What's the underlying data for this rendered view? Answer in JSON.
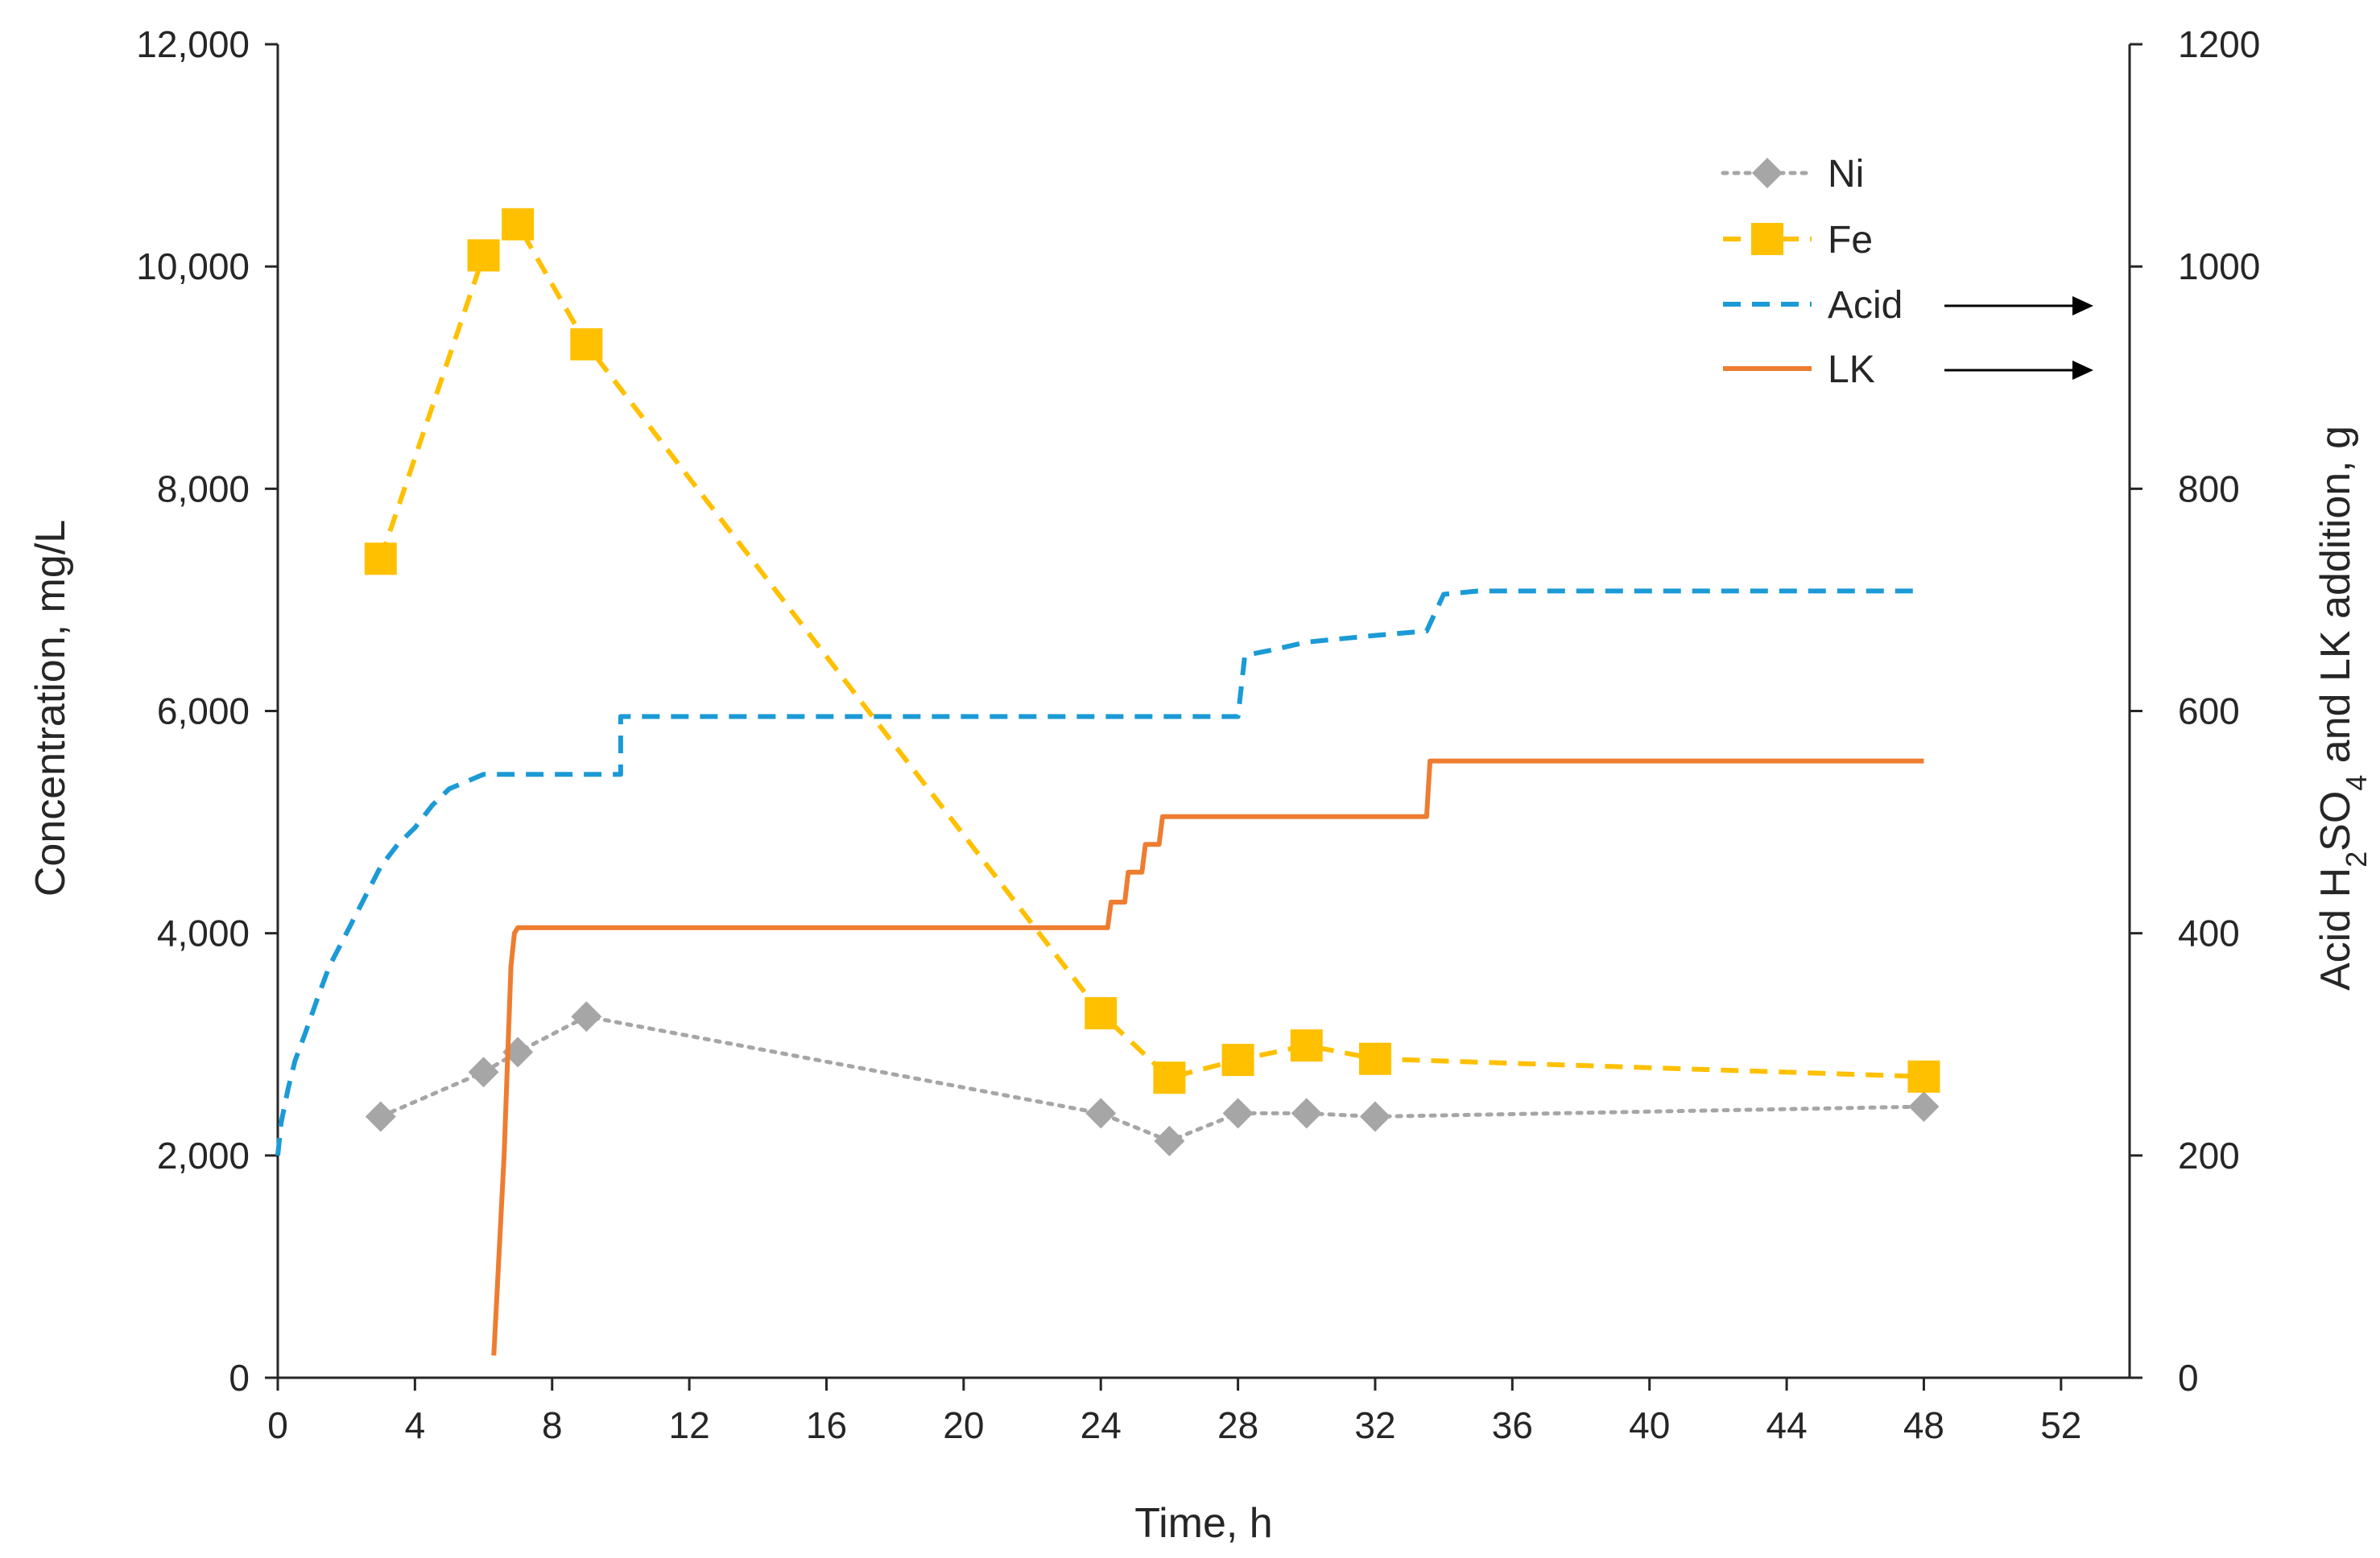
{
  "chart_data": {
    "type": "line",
    "title": "",
    "xlabel": "Time, h",
    "ylabel": "Concentration, mg/L",
    "y2label_parts": [
      "Acid H",
      "2",
      "SO",
      "4",
      " and LK addition, g"
    ],
    "xlim": [
      0,
      54
    ],
    "ylim": [
      0,
      12000
    ],
    "y2lim": [
      0,
      1200
    ],
    "x_ticks": [
      0,
      4,
      8,
      12,
      16,
      20,
      24,
      28,
      32,
      36,
      40,
      44,
      48,
      52
    ],
    "x_tick_labels": [
      "0",
      "4",
      "8",
      "12",
      "16",
      "20",
      "24",
      "28",
      "32",
      "36",
      "40",
      "44",
      "48",
      "52"
    ],
    "y_ticks": [
      0,
      2000,
      4000,
      6000,
      8000,
      10000,
      12000
    ],
    "y_tick_labels": [
      "0",
      "2,000",
      "4,000",
      "6,000",
      "8,000",
      "10,000",
      "12,000"
    ],
    "y2_ticks": [
      0,
      200,
      400,
      600,
      800,
      1000,
      1200
    ],
    "y2_tick_labels": [
      "0",
      "200",
      "400",
      "600",
      "800",
      "1000",
      "1200"
    ],
    "legend_position": "top-right",
    "series": [
      {
        "name": "Ni",
        "axis": "left",
        "style": "dotted",
        "marker": "diamond",
        "color": "#a6a6a6",
        "x": [
          3,
          6,
          7,
          9,
          24,
          26,
          28,
          30,
          32,
          48
        ],
        "y": [
          2350,
          2750,
          2930,
          3250,
          2380,
          2130,
          2380,
          2380,
          2350,
          2440
        ]
      },
      {
        "name": "Fe",
        "axis": "left",
        "style": "dashed",
        "marker": "square",
        "color": "#ffc000",
        "x": [
          3,
          6,
          7,
          9,
          24,
          26,
          28,
          30,
          32,
          48
        ],
        "y": [
          7370,
          10100,
          10380,
          9300,
          3280,
          2700,
          2860,
          2990,
          2870,
          2710
        ]
      },
      {
        "name": "Acid",
        "axis": "right",
        "style": "dashed",
        "marker": "none",
        "color": "#1b9ad6",
        "legend_arrow": true,
        "x": [
          0,
          0.1,
          0.3,
          0.5,
          0.8,
          1.2,
          1.5,
          2.0,
          2.5,
          3.0,
          3.5,
          4.0,
          4.5,
          5.0,
          6.0,
          7.0,
          10.0,
          10.0,
          25.0,
          28.0,
          28.2,
          29.0,
          30.0,
          32.0,
          33.5,
          34.0,
          35.0,
          48.0
        ],
        "y": [
          200,
          230,
          260,
          285,
          310,
          345,
          370,
          400,
          430,
          460,
          480,
          495,
          515,
          530,
          543,
          543,
          543,
          595,
          595,
          595,
          650,
          655,
          662,
          668,
          672,
          705,
          708,
          708
        ]
      },
      {
        "name": "LK",
        "axis": "right",
        "style": "solid",
        "marker": "none",
        "color": "#ed7d31",
        "legend_arrow": true,
        "x": [
          6.3,
          6.4,
          6.6,
          6.8,
          6.9,
          7.0,
          24.2,
          24.3,
          24.7,
          24.8,
          25.2,
          25.3,
          25.7,
          25.8,
          33.5,
          33.6,
          48.0
        ],
        "y": [
          20,
          80,
          200,
          370,
          400,
          405,
          405,
          428,
          428,
          455,
          455,
          480,
          480,
          505,
          505,
          555,
          555
        ]
      }
    ]
  }
}
